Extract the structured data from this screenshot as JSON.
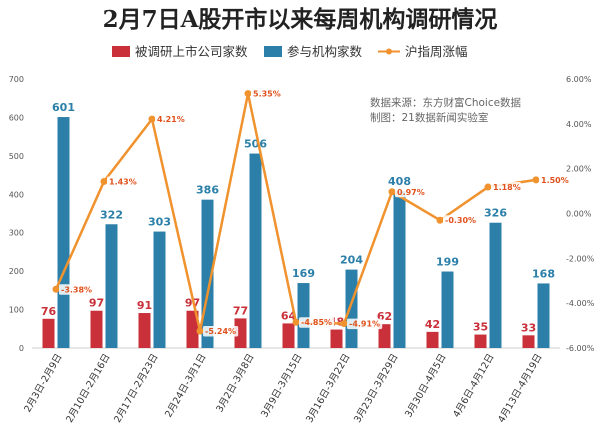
{
  "chart_data": {
    "type": "bar",
    "title": "2月7日A股开市以来每周机构调研情况",
    "categories": [
      "2月3日-2月9日",
      "2月10日-2月16日",
      "2月17日-2月23日",
      "2月24日-3月1日",
      "3月2日-3月8日",
      "3月9日-3月15日",
      "3月16日-3月22日",
      "3月23日-3月29日",
      "3月30日-4月5日",
      "4月6日-4月12日",
      "4月13日-4月19日"
    ],
    "series": [
      {
        "name": "被调研上市公司家数",
        "type": "bar",
        "axis": "left",
        "color": "#C9303A",
        "values": [
          76,
          97,
          91,
          97,
          77,
          64,
          48,
          62,
          42,
          35,
          33
        ],
        "labels": [
          "76",
          "97",
          "91",
          "97",
          "77",
          "64",
          "48",
          "62",
          "42",
          "35",
          "33"
        ]
      },
      {
        "name": "参与机构家数",
        "type": "bar",
        "axis": "left",
        "color": "#2B7FA8",
        "values": [
          601,
          322,
          303,
          386,
          506,
          169,
          204,
          408,
          199,
          326,
          168
        ],
        "labels": [
          "601",
          "322",
          "303",
          "386",
          "506",
          "169",
          "204",
          "408",
          "199",
          "326",
          "168"
        ]
      },
      {
        "name": "沪指周涨幅",
        "type": "line",
        "axis": "right",
        "color": "#F0922D",
        "values": [
          -3.38,
          1.43,
          4.21,
          -5.24,
          5.35,
          -4.85,
          -4.91,
          0.97,
          -0.3,
          1.18,
          1.5
        ],
        "labels": [
          "-3.38%",
          "1.43%",
          "4.21%",
          "-5.24%",
          "5.35%",
          "-4.85%",
          "-4.91%",
          "0.97%",
          "-0.30%",
          "1.18%",
          "1.50%"
        ]
      }
    ],
    "y_left": {
      "range": [
        0,
        700
      ],
      "step": 100,
      "ticks": [
        "0",
        "100",
        "200",
        "300",
        "400",
        "500",
        "600",
        "700"
      ]
    },
    "y_right": {
      "range": [
        -6,
        6
      ],
      "step": 2,
      "ticks": [
        "-6.00%",
        "-4.00%",
        "-2.00%",
        "0.00%",
        "2.00%",
        "4.00%",
        "6.00%"
      ]
    },
    "grid": false,
    "legend_position": "top",
    "source_lines": [
      "数据来源：东方财富Choice数据",
      "制图：21数据新闻实验室"
    ]
  }
}
